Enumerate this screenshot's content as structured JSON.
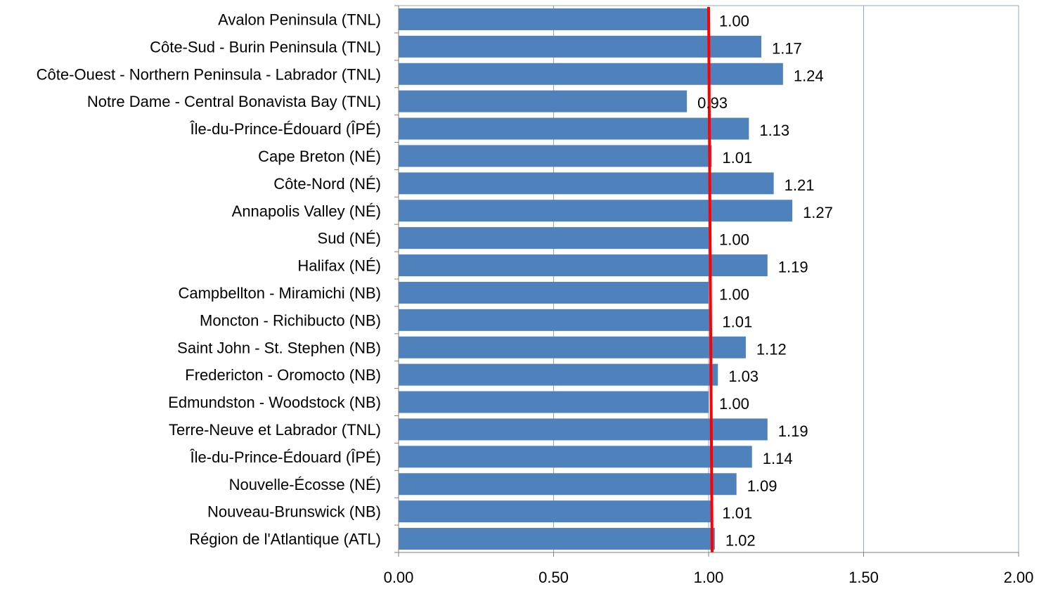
{
  "chart_data": {
    "type": "bar",
    "orientation": "horizontal",
    "title": "",
    "xlabel": "",
    "ylabel": "",
    "categories": [
      "Avalon Peninsula (TNL)",
      "Côte-Sud - Burin Peninsula (TNL)",
      "Côte-Ouest - Northern Peninsula - Labrador (TNL)",
      "Notre Dame - Central Bonavista Bay (TNL)",
      "Île-du-Prince-Édouard (ÎPÉ)",
      "Cape Breton (NÉ)",
      "Côte-Nord (NÉ)",
      "Annapolis Valley (NÉ)",
      "Sud (NÉ)",
      "Halifax (NÉ)",
      "Campbellton - Miramichi (NB)",
      "Moncton - Richibucto (NB)",
      "Saint John - St. Stephen (NB)",
      "Fredericton - Oromocto (NB)",
      "Edmundston - Woodstock (NB)",
      "Terre-Neuve et Labrador (TNL)",
      "Île-du-Prince-Édouard (ÎPÉ)",
      "Nouvelle-Écosse (NÉ)",
      "Nouveau-Brunswick (NB)",
      "Région de l'Atlantique (ATL)"
    ],
    "values": [
      1.0,
      1.17,
      1.24,
      0.93,
      1.13,
      1.01,
      1.21,
      1.27,
      1.0,
      1.19,
      1.0,
      1.01,
      1.12,
      1.03,
      1.0,
      1.19,
      1.14,
      1.09,
      1.01,
      1.02
    ],
    "value_labels": [
      "1.00",
      "1.17",
      "1.24",
      "0.93",
      "1.13",
      "1.01",
      "1.21",
      "1.27",
      "1.00",
      "1.19",
      "1.00",
      "1.01",
      "1.12",
      "1.03",
      "1.00",
      "1.19",
      "1.14",
      "1.09",
      "1.01",
      "1.02"
    ],
    "xlim": [
      0,
      2
    ],
    "x_ticks": [
      0,
      0.5,
      1,
      1.5,
      2
    ],
    "x_tick_labels": [
      "0.00",
      "0.50",
      "1.00",
      "1.50",
      "2.00"
    ],
    "reference_line": {
      "x": 1.0,
      "color": "#ff0000"
    },
    "grid": "vertical",
    "legend": "none",
    "colors": {
      "bar": "#4f81bd",
      "grid": "#8ea9c8",
      "reference": "#ff0000"
    }
  }
}
